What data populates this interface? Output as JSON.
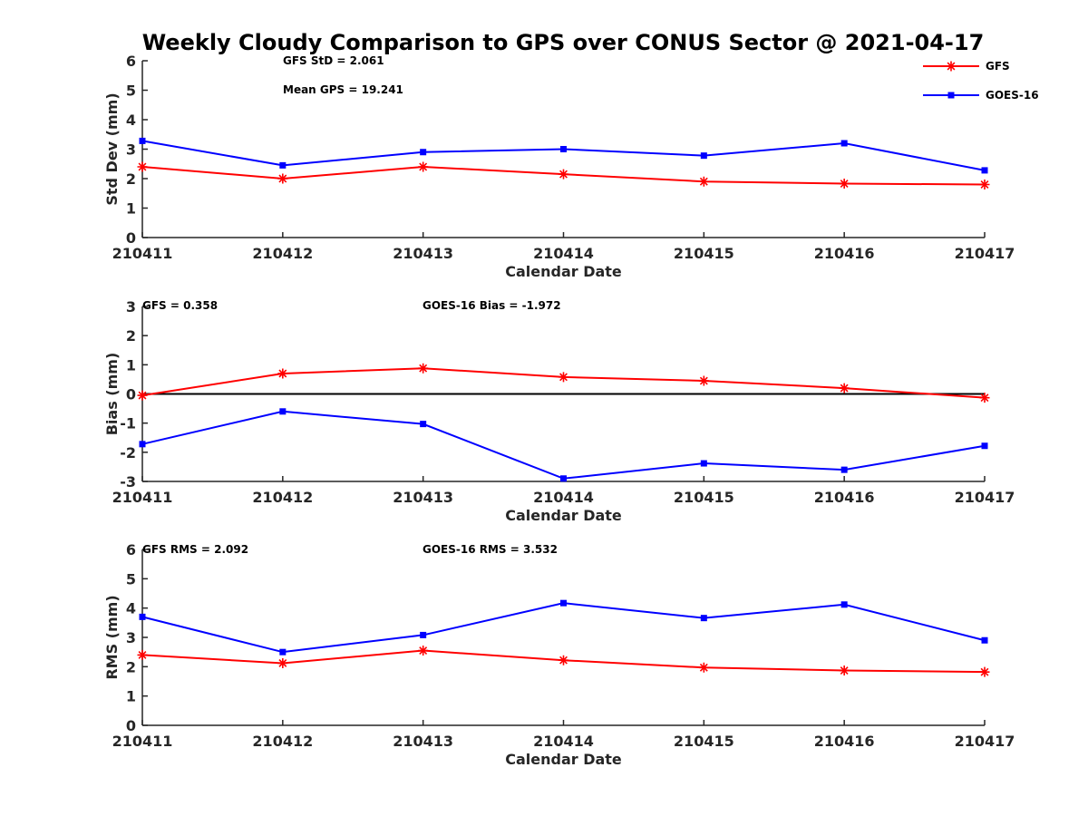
{
  "chart_data": {
    "title": "Weekly Cloudy Comparison to GPS over CONUS Sector @ 2021-04-17",
    "categories": [
      "210411",
      "210412",
      "210413",
      "210414",
      "210415",
      "210416",
      "210417"
    ],
    "legend": {
      "placement": "top-right",
      "entries": [
        {
          "name": "GFS",
          "color": "#ff0000",
          "marker": "asterisk"
        },
        {
          "name": "GOES-16",
          "color": "#0000ff",
          "marker": "square"
        }
      ]
    },
    "panels": [
      {
        "type": "line",
        "ylabel": "Std Dev (mm)",
        "xlabel": "Calendar Date",
        "ylim": [
          0,
          6
        ],
        "yticks": [
          0,
          1,
          2,
          3,
          4,
          5,
          6
        ],
        "annotations": [
          {
            "text": "GFS StD = 2.061"
          },
          {
            "text": "Mean GPS = 19.241"
          }
        ],
        "series": [
          {
            "name": "GFS",
            "values": [
              2.4,
              2.0,
              2.4,
              2.15,
              1.9,
              1.83,
              1.8
            ]
          },
          {
            "name": "GOES-16",
            "values": [
              3.28,
              2.45,
              2.9,
              3.0,
              2.78,
              3.2,
              2.28
            ]
          }
        ]
      },
      {
        "type": "line",
        "ylabel": "Bias (mm)",
        "xlabel": "Calendar Date",
        "ylim": [
          -3,
          3
        ],
        "yticks": [
          -3,
          -2,
          -1,
          0,
          1,
          2,
          3
        ],
        "zero_line": true,
        "annotations": [
          {
            "text": "GFS = 0.358"
          },
          {
            "text": "GOES-16 Bias  = -1.972"
          }
        ],
        "series": [
          {
            "name": "GFS",
            "values": [
              -0.05,
              0.7,
              0.88,
              0.58,
              0.45,
              0.2,
              -0.13
            ]
          },
          {
            "name": "GOES-16",
            "values": [
              -1.72,
              -0.6,
              -1.03,
              -2.9,
              -2.38,
              -2.6,
              -1.78
            ]
          }
        ]
      },
      {
        "type": "line",
        "ylabel": "RMS (mm)",
        "xlabel": "Calendar Date",
        "ylim": [
          0,
          6
        ],
        "yticks": [
          0,
          1,
          2,
          3,
          4,
          5,
          6
        ],
        "annotations": [
          {
            "text": "GFS RMS = 2.092"
          },
          {
            "text": "GOES-16 RMS = 3.532"
          }
        ],
        "series": [
          {
            "name": "GFS",
            "values": [
              2.4,
              2.12,
              2.55,
              2.22,
              1.97,
              1.87,
              1.82
            ]
          },
          {
            "name": "GOES-16",
            "values": [
              3.7,
              2.5,
              3.08,
              4.17,
              3.66,
              4.12,
              2.9
            ]
          }
        ]
      }
    ]
  }
}
